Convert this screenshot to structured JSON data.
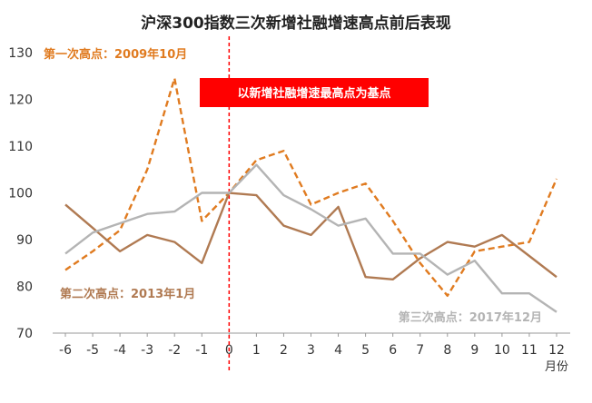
{
  "chart_data": {
    "type": "line",
    "title": "沪深300指数三次新增社融增速高点前后表现",
    "x": [
      -6,
      -5,
      -4,
      -3,
      -2,
      -1,
      0,
      1,
      2,
      3,
      4,
      5,
      6,
      7,
      8,
      9,
      10,
      11,
      12
    ],
    "x_unit": "月份",
    "ylim": [
      70,
      130
    ],
    "y_ticks": [
      70,
      80,
      90,
      100,
      110,
      120,
      130
    ],
    "grid": false,
    "series": [
      {
        "name": "第一次高点：2009年10月",
        "color": "#E07B20",
        "dashed": true,
        "values": [
          83.5,
          87.5,
          92,
          105,
          124.5,
          94,
          100,
          107,
          109,
          97.5,
          100,
          102,
          94,
          85,
          78,
          87.5,
          88.5,
          89.5,
          103
        ]
      },
      {
        "name": "第二次高点：2013年1月",
        "color": "#B07A52",
        "dashed": false,
        "values": [
          97.5,
          92.5,
          87.5,
          91,
          89.5,
          85,
          100,
          99.5,
          93,
          91,
          97,
          82,
          81.5,
          86,
          89.5,
          88.5,
          91,
          86.5,
          82
        ]
      },
      {
        "name": "第三次高点：2017年12月",
        "color": "#B4B4B4",
        "dashed": false,
        "values": [
          87,
          91.5,
          93.5,
          95.5,
          96,
          100,
          100,
          106,
          99.5,
          96.5,
          93,
          94.5,
          87,
          87,
          82.5,
          85.5,
          78.5,
          78.5,
          74.5
        ]
      }
    ],
    "baseline_x": 0,
    "baseline_label": "以新增社融增速最高点为基点",
    "baseline_color": "#FF0000"
  }
}
